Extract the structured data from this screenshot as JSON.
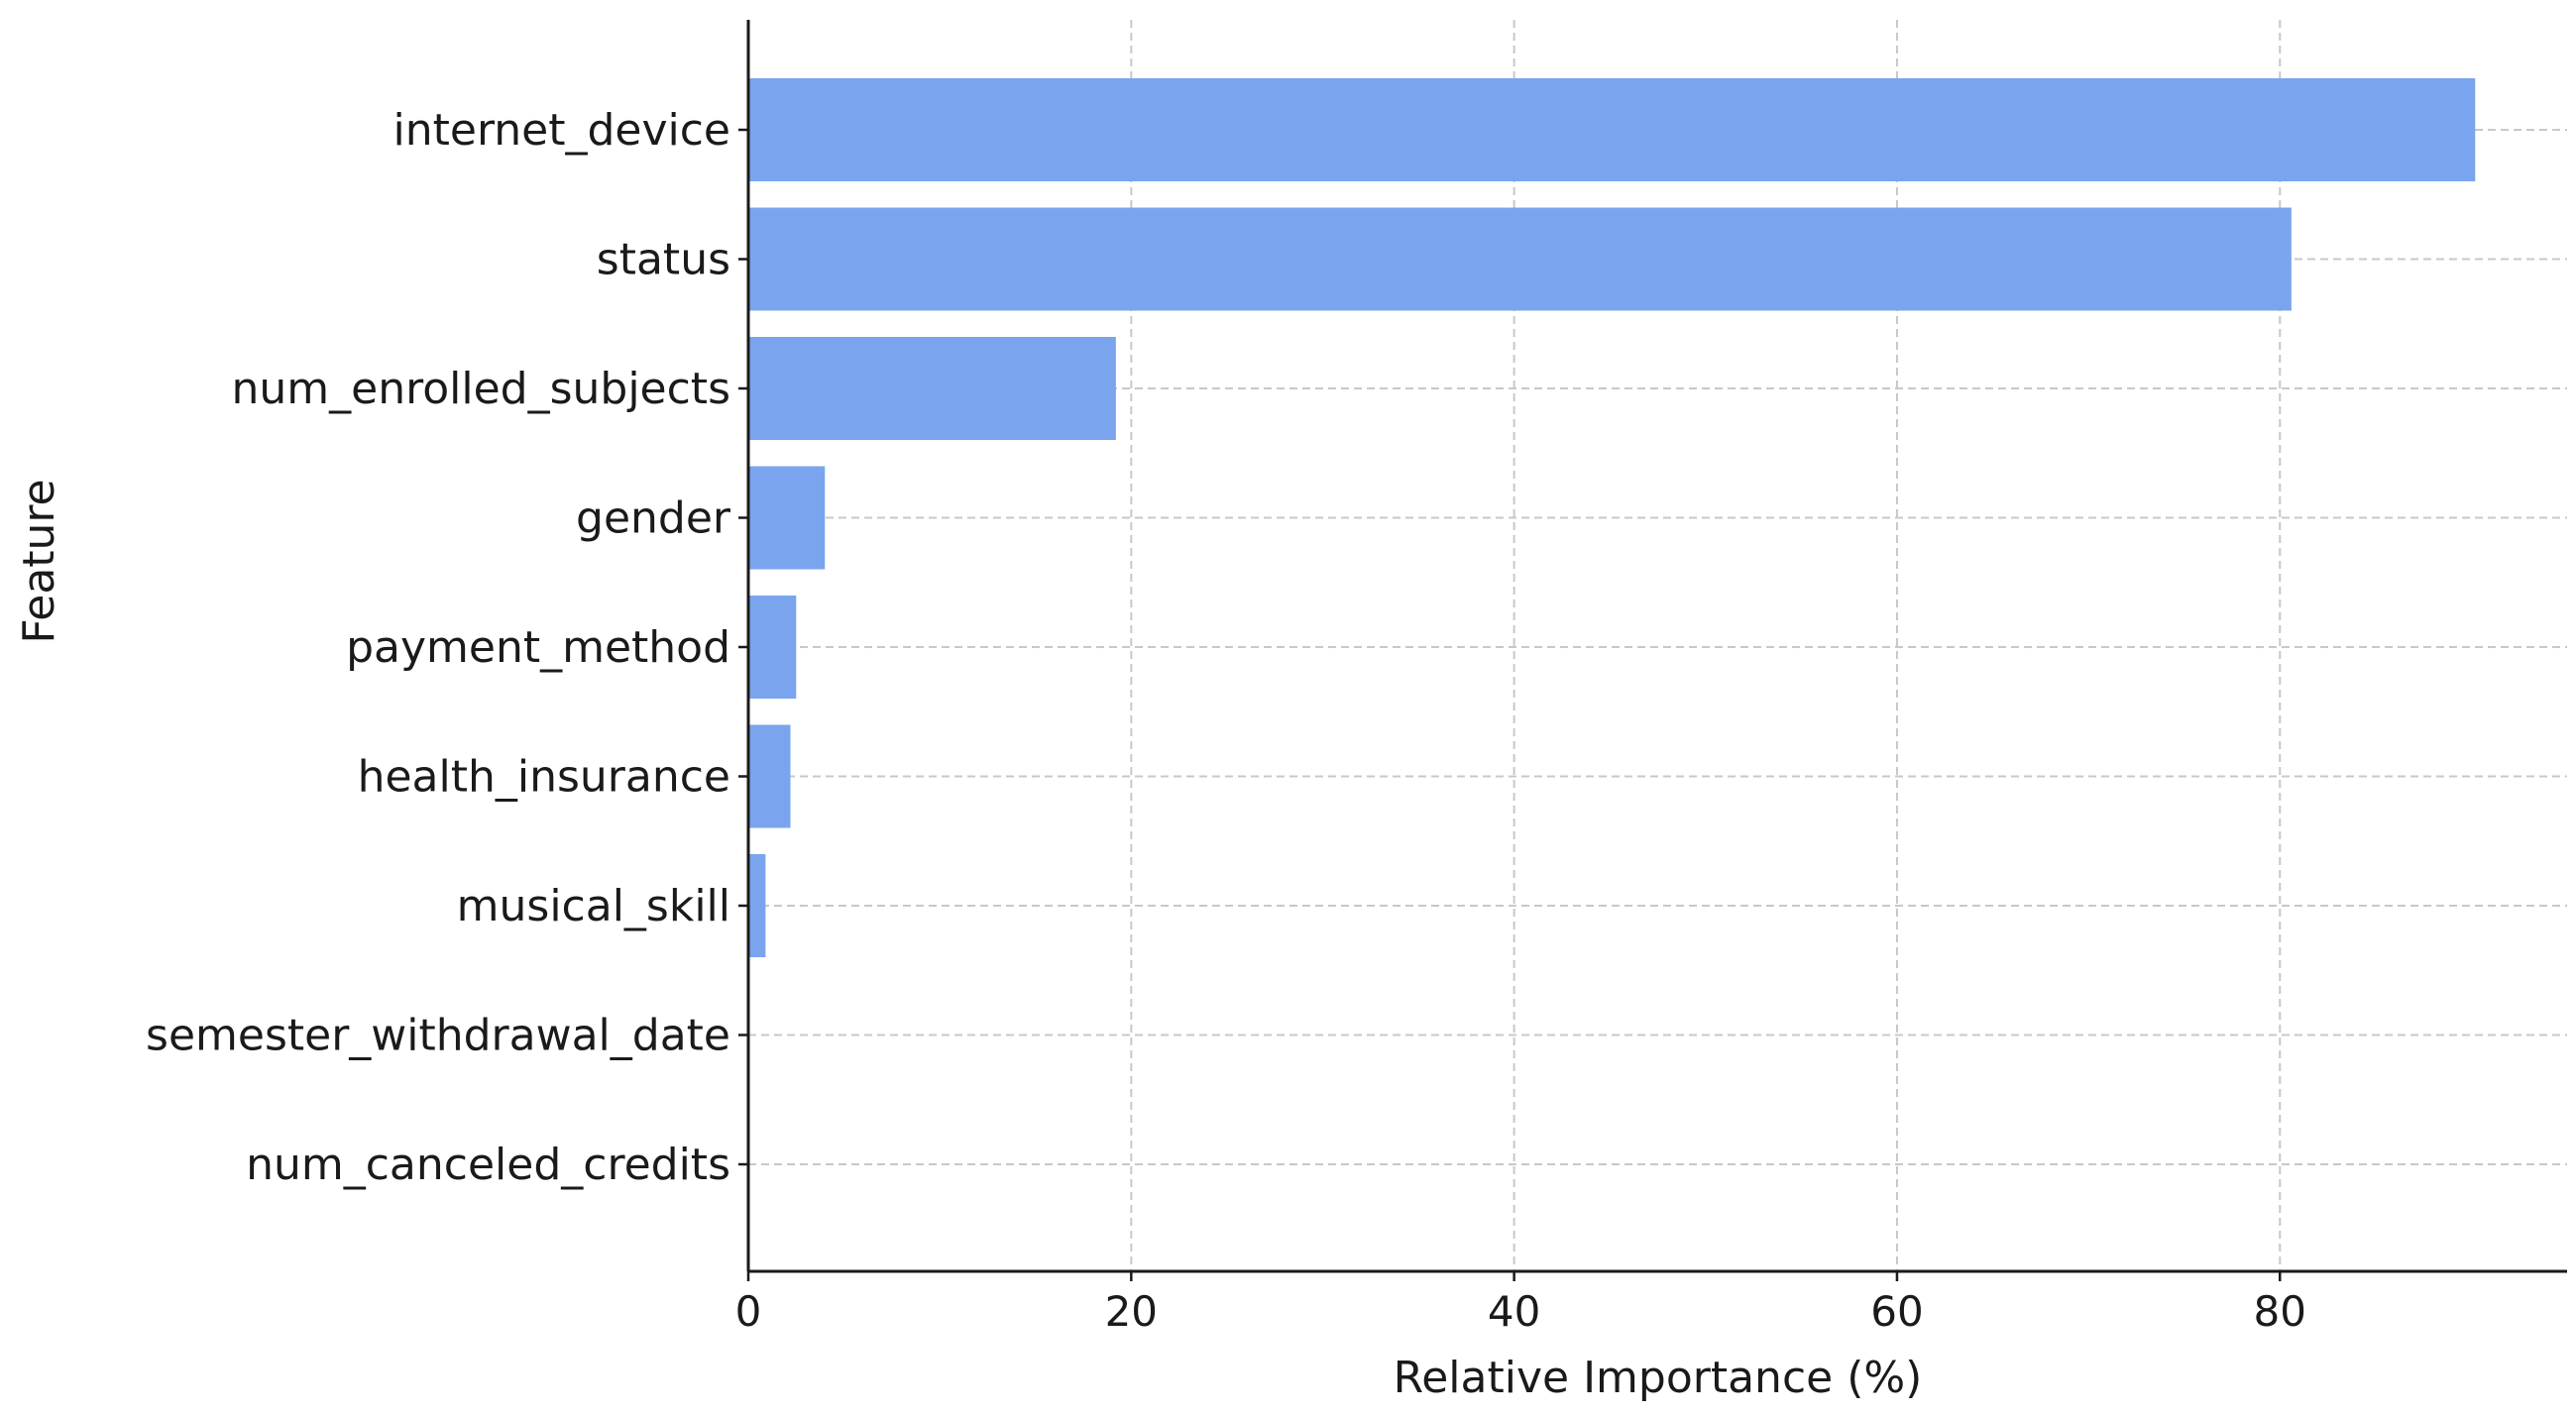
{
  "chart_data": {
    "type": "bar",
    "orientation": "horizontal",
    "title": "",
    "xlabel": "Relative Importance (%)",
    "ylabel": "Feature",
    "categories": [
      "internet_device",
      "status",
      "num_enrolled_subjects",
      "gender",
      "payment_method",
      "health_insurance",
      "musical_skill",
      "semester_withdrawal_date",
      "num_canceled_credits"
    ],
    "values": [
      90.2,
      80.6,
      19.2,
      4.0,
      2.5,
      2.2,
      0.9,
      0.0,
      0.0
    ],
    "xlim": [
      0,
      95
    ],
    "xticks": [
      0,
      20,
      40,
      60,
      80
    ],
    "xtick_labels": [
      "0",
      "20",
      "40",
      "60",
      "80"
    ],
    "grid": true,
    "grid_style": "dashed",
    "bar_color": "#7aa4ee"
  }
}
